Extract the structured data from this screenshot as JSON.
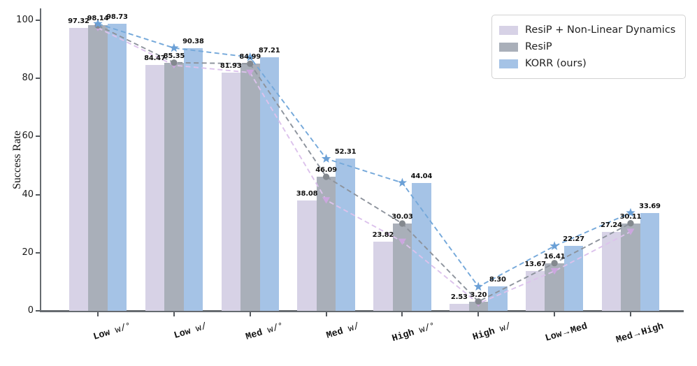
{
  "chart_data": {
    "type": "bar",
    "title": "",
    "ylabel": "Success Rate",
    "ylim": [
      0,
      104
    ],
    "yticks": [
      0,
      20,
      40,
      60,
      80,
      100
    ],
    "grid": false,
    "legend_position": "upper right",
    "value_label_decimals": 2,
    "categories": [
      {
        "label": "Low w/∘",
        "parts": [
          {
            "t": "Low",
            "s": "bold"
          },
          {
            "t": " w/",
            "s": "normal"
          },
          {
            "t": "∘",
            "s": "circle"
          }
        ]
      },
      {
        "label": "Low w/",
        "parts": [
          {
            "t": "Low",
            "s": "bold"
          },
          {
            "t": " w/",
            "s": "normal"
          }
        ]
      },
      {
        "label": "Med w/∘",
        "parts": [
          {
            "t": "Med",
            "s": "bold"
          },
          {
            "t": " w/",
            "s": "normal"
          },
          {
            "t": "∘",
            "s": "circle"
          }
        ]
      },
      {
        "label": "Med w/",
        "parts": [
          {
            "t": "Med",
            "s": "bold"
          },
          {
            "t": " w/",
            "s": "normal"
          }
        ]
      },
      {
        "label": "High w/∘",
        "parts": [
          {
            "t": "High",
            "s": "bold"
          },
          {
            "t": " w/",
            "s": "normal"
          },
          {
            "t": "∘",
            "s": "circle"
          }
        ]
      },
      {
        "label": "High w/",
        "parts": [
          {
            "t": "High",
            "s": "bold"
          },
          {
            "t": " w/",
            "s": "normal"
          }
        ]
      },
      {
        "label": "Low → Med",
        "parts": [
          {
            "t": "Low",
            "s": "bold"
          },
          {
            "t": " → ",
            "s": "normal"
          },
          {
            "t": "Med",
            "s": "bold"
          }
        ]
      },
      {
        "label": "Med → High",
        "parts": [
          {
            "t": "Med",
            "s": "bold"
          },
          {
            "t": " → ",
            "s": "normal"
          },
          {
            "t": "High",
            "s": "bold"
          }
        ]
      }
    ],
    "series": [
      {
        "name": "ResiP + Non-Linear Dynamics",
        "bar_color": "#d7d2e6",
        "line_color": "#dcc2ec",
        "marker_color": "#cba6de",
        "marker": "triangle-down",
        "values": [
          97.32,
          84.47,
          81.93,
          38.08,
          23.82,
          2.53,
          13.67,
          27.24
        ]
      },
      {
        "name": "ResiP",
        "bar_color": "#a9afb9",
        "line_color": "#8d939c",
        "marker_color": "#84898f",
        "marker": "circle",
        "values": [
          98.14,
          85.35,
          84.99,
          46.09,
          30.03,
          3.2,
          16.41,
          30.11
        ]
      },
      {
        "name": "KORR (ours)",
        "bar_color": "#a5c3e6",
        "line_color": "#74a8da",
        "marker_color": "#6ba0d6",
        "marker": "star",
        "values": [
          98.73,
          90.38,
          87.21,
          52.31,
          44.04,
          8.3,
          22.27,
          33.69
        ]
      }
    ]
  }
}
